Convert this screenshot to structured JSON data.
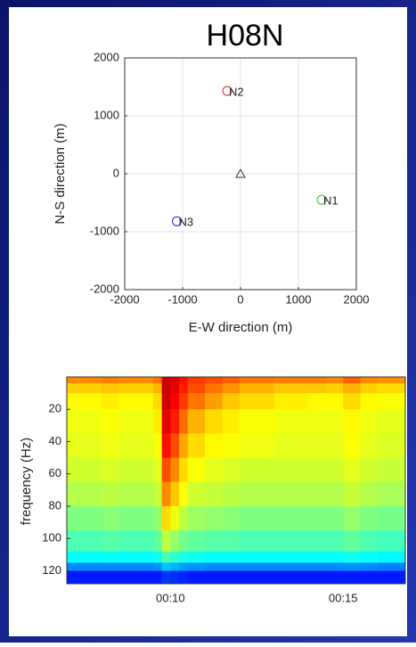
{
  "chart_data": [
    {
      "type": "scatter",
      "title": "H08N",
      "xlabel": "E-W direction (m)",
      "ylabel": "N-S direction (m)",
      "xlim": [
        -2000,
        2000
      ],
      "ylim": [
        -2000,
        2000
      ],
      "xticks": [
        -2000,
        -1000,
        0,
        1000,
        2000
      ],
      "yticks": [
        -2000,
        -1000,
        0,
        1000,
        2000
      ],
      "grid": true,
      "series": [
        {
          "name": "N1",
          "color": "#22cc22",
          "x": [
            1400
          ],
          "y": [
            -450
          ]
        },
        {
          "name": "N2",
          "color": "#e02020",
          "x": [
            -230
          ],
          "y": [
            1430
          ]
        },
        {
          "name": "N3",
          "color": "#2020e0",
          "x": [
            -1100
          ],
          "y": [
            -820
          ]
        }
      ],
      "reference": {
        "x": 0,
        "y": 0,
        "color": "#333333"
      }
    },
    {
      "type": "spectrogram",
      "ylabel": "frequency (Hz)",
      "xlim": [
        7,
        16.8
      ],
      "ylim": [
        0,
        128
      ],
      "xticks": [
        {
          "value": 10,
          "label": "00:10"
        },
        {
          "value": 15,
          "label": "00:15"
        }
      ],
      "yticks": [
        20,
        40,
        60,
        80,
        100,
        120
      ],
      "time_bins": [
        7,
        7.5,
        8,
        8.5,
        9,
        9.5,
        9.75,
        10,
        10.25,
        10.5,
        11,
        11.5,
        12,
        13,
        14,
        14.5,
        15,
        15.5,
        16,
        16.8
      ],
      "freq_bins": [
        0,
        4,
        10,
        20,
        35,
        50,
        65,
        80,
        95,
        108,
        115,
        120,
        128
      ],
      "values": [
        [
          0.74,
          0.74,
          0.75,
          0.74,
          0.74,
          0.76,
          0.92,
          0.9,
          0.86,
          0.82,
          0.8,
          0.78,
          0.76,
          0.75,
          0.75,
          0.74,
          0.78,
          0.74,
          0.73
        ],
        [
          0.67,
          0.67,
          0.68,
          0.67,
          0.67,
          0.7,
          0.93,
          0.9,
          0.85,
          0.8,
          0.76,
          0.73,
          0.7,
          0.68,
          0.68,
          0.67,
          0.7,
          0.67,
          0.66
        ],
        [
          0.63,
          0.63,
          0.64,
          0.63,
          0.63,
          0.66,
          0.92,
          0.88,
          0.82,
          0.76,
          0.72,
          0.68,
          0.66,
          0.64,
          0.63,
          0.63,
          0.66,
          0.63,
          0.62
        ],
        [
          0.61,
          0.61,
          0.62,
          0.61,
          0.61,
          0.64,
          0.9,
          0.85,
          0.77,
          0.7,
          0.66,
          0.64,
          0.62,
          0.61,
          0.61,
          0.61,
          0.63,
          0.61,
          0.6
        ],
        [
          0.6,
          0.6,
          0.61,
          0.6,
          0.6,
          0.62,
          0.86,
          0.8,
          0.71,
          0.66,
          0.63,
          0.62,
          0.61,
          0.6,
          0.6,
          0.6,
          0.62,
          0.6,
          0.59
        ],
        [
          0.58,
          0.58,
          0.59,
          0.58,
          0.58,
          0.6,
          0.8,
          0.74,
          0.66,
          0.62,
          0.6,
          0.59,
          0.58,
          0.58,
          0.58,
          0.58,
          0.6,
          0.58,
          0.57
        ],
        [
          0.55,
          0.55,
          0.56,
          0.55,
          0.55,
          0.57,
          0.74,
          0.68,
          0.62,
          0.58,
          0.57,
          0.56,
          0.55,
          0.55,
          0.55,
          0.55,
          0.57,
          0.55,
          0.54
        ],
        [
          0.5,
          0.5,
          0.51,
          0.5,
          0.5,
          0.52,
          0.66,
          0.61,
          0.56,
          0.53,
          0.52,
          0.51,
          0.5,
          0.5,
          0.5,
          0.5,
          0.52,
          0.5,
          0.49
        ],
        [
          0.45,
          0.45,
          0.46,
          0.45,
          0.45,
          0.47,
          0.56,
          0.52,
          0.49,
          0.47,
          0.46,
          0.46,
          0.45,
          0.45,
          0.45,
          0.45,
          0.47,
          0.45,
          0.44
        ],
        [
          0.38,
          0.38,
          0.38,
          0.38,
          0.38,
          0.39,
          0.45,
          0.42,
          0.4,
          0.39,
          0.38,
          0.38,
          0.38,
          0.38,
          0.38,
          0.38,
          0.39,
          0.38,
          0.37
        ],
        [
          0.26,
          0.26,
          0.26,
          0.26,
          0.26,
          0.27,
          0.32,
          0.3,
          0.28,
          0.27,
          0.26,
          0.26,
          0.26,
          0.26,
          0.26,
          0.26,
          0.27,
          0.26,
          0.25
        ],
        [
          0.15,
          0.15,
          0.15,
          0.15,
          0.15,
          0.15,
          0.18,
          0.17,
          0.16,
          0.15,
          0.15,
          0.15,
          0.15,
          0.15,
          0.15,
          0.15,
          0.15,
          0.15,
          0.15
        ]
      ]
    }
  ]
}
